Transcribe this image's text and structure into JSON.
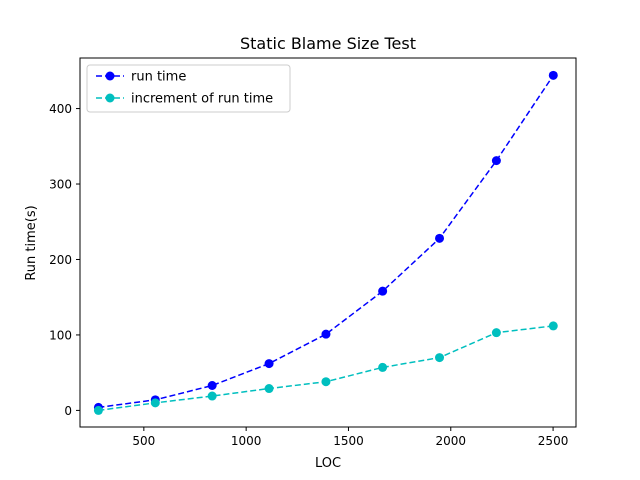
{
  "chart_data": {
    "type": "line",
    "title": "Static Blame Size Test",
    "xlabel": "LOC",
    "ylabel": "Run time(s)",
    "xlim": [
      188,
      2612
    ],
    "ylim": [
      -22,
      467
    ],
    "x_ticks": [
      500,
      1000,
      1500,
      2000,
      2500
    ],
    "y_ticks": [
      0,
      100,
      200,
      300,
      400
    ],
    "grid": false,
    "legend_position": "top-left",
    "x": [
      278,
      556,
      834,
      1112,
      1390,
      1667,
      1945,
      2223,
      2501
    ],
    "series": [
      {
        "name": "run time",
        "color": "#0000ff",
        "line_style": "dashed",
        "marker": "circle",
        "values": [
          4,
          14,
          33,
          62,
          101,
          158,
          228,
          331,
          444
        ]
      },
      {
        "name": "increment of run time",
        "color": "#00bfbf",
        "line_style": "dashed",
        "marker": "circle",
        "values": [
          0,
          10,
          19,
          29,
          38,
          57,
          70,
          103,
          112
        ]
      }
    ]
  }
}
